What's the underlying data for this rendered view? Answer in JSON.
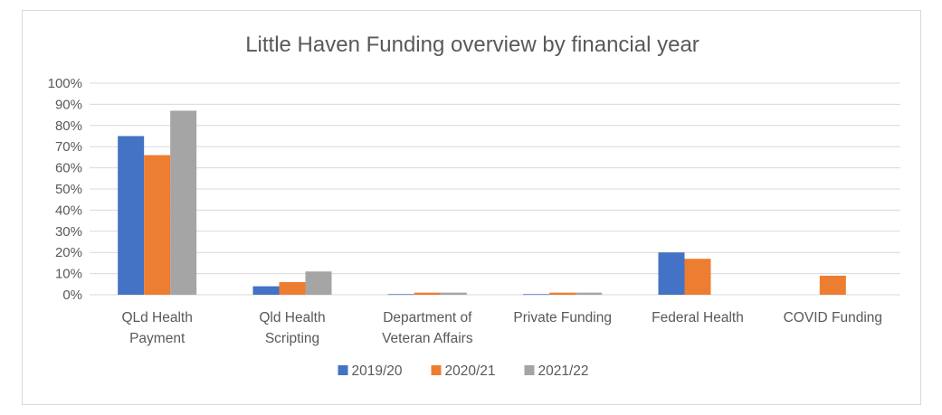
{
  "chart_data": {
    "type": "bar",
    "title": "Little Haven Funding overview by financial year",
    "xlabel": "",
    "ylabel": "",
    "ylim": [
      0,
      100
    ],
    "y_ticks": [
      "0%",
      "10%",
      "20%",
      "30%",
      "40%",
      "50%",
      "60%",
      "70%",
      "80%",
      "90%",
      "100%"
    ],
    "categories": [
      [
        "QLd Health",
        "Payment"
      ],
      [
        "Qld Health",
        "Scripting"
      ],
      [
        "Department of",
        "Veteran Affairs"
      ],
      [
        "Private Funding"
      ],
      [
        "Federal Health"
      ],
      [
        "COVID Funding"
      ]
    ],
    "series": [
      {
        "name": "2019/20",
        "color": "#4472c4",
        "values": [
          75,
          4,
          0.3,
          0.3,
          20,
          0
        ]
      },
      {
        "name": "2020/21",
        "color": "#ed7d31",
        "values": [
          66,
          6,
          1,
          1,
          17,
          9
        ]
      },
      {
        "name": "2021/22",
        "color": "#a5a5a5",
        "values": [
          87,
          11,
          1,
          1,
          0,
          0
        ]
      }
    ],
    "grid": true,
    "legend_position": "bottom"
  }
}
